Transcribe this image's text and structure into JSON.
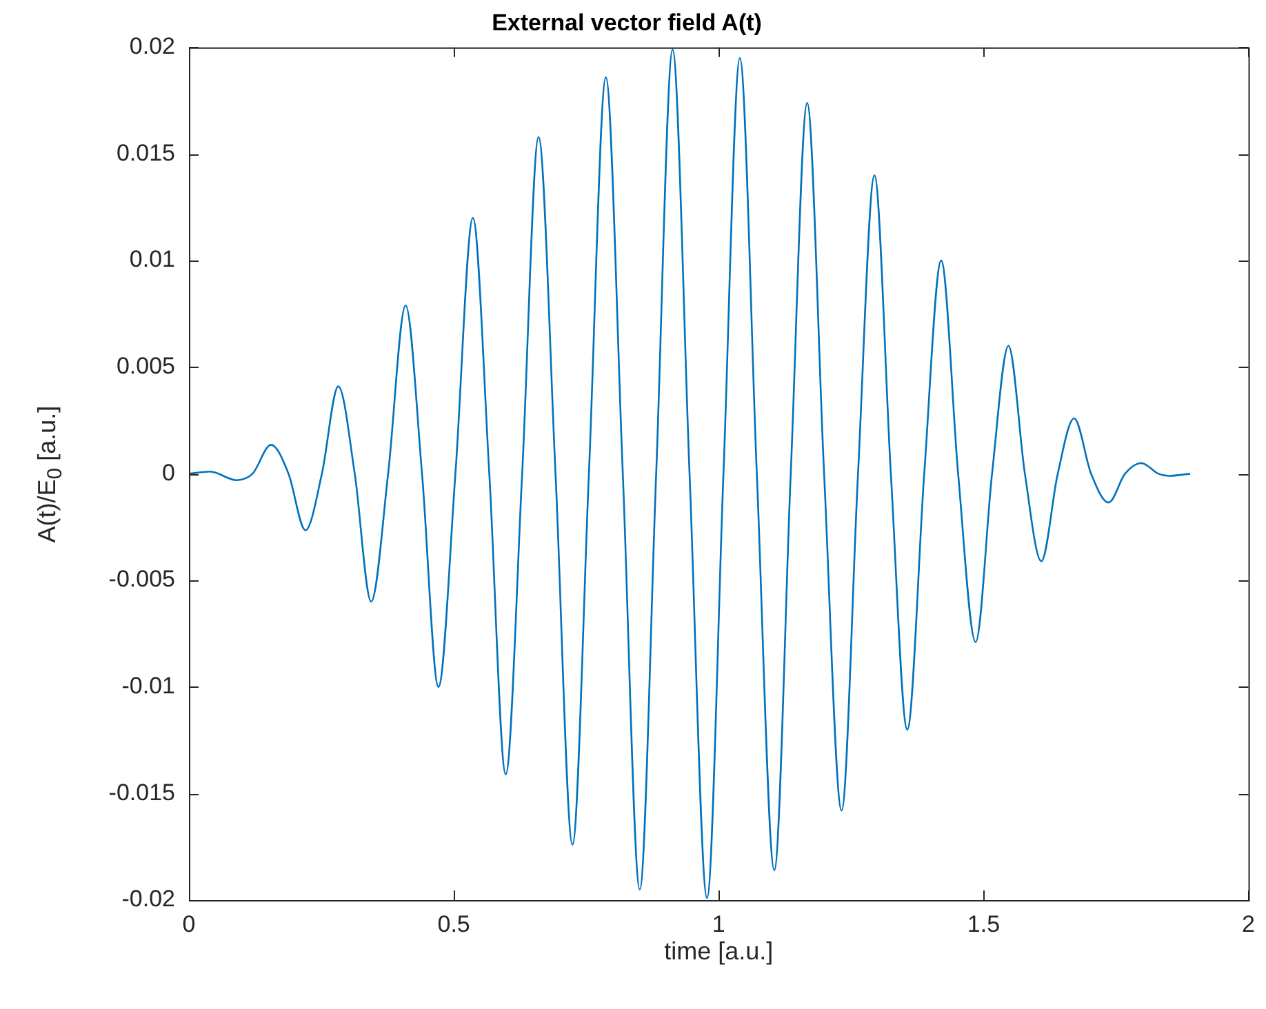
{
  "chart_data": {
    "type": "line",
    "title": "External vector field A(t)",
    "xlabel": "time [a.u.]",
    "ylabel": "A(t)/E$_{0}$ [a.u.]",
    "xlim": [
      0,
      2
    ],
    "xticks": [
      0,
      0.5,
      1,
      1.5,
      2
    ],
    "ylim": [
      -0.02,
      0.02
    ],
    "yticks": [
      -0.02,
      -0.015,
      -0.01,
      -0.005,
      0,
      0.005,
      0.01,
      0.015,
      0.02
    ],
    "grid": false,
    "legend": false,
    "marker": "none",
    "line_style": "solid",
    "series": [
      {
        "color": "#0072bd",
        "x": [
          0,
          0.04,
          0.09,
          0.12,
          0.155,
          0.188,
          0.22,
          0.251,
          0.282,
          0.313,
          0.344,
          0.376,
          0.409,
          0.44,
          0.471,
          0.503,
          0.536,
          0.567,
          0.598,
          0.629,
          0.66,
          0.692,
          0.724,
          0.755,
          0.787,
          0.819,
          0.851,
          0.882,
          0.913,
          0.945,
          0.978,
          1.009,
          1.04,
          1.072,
          1.105,
          1.136,
          1.167,
          1.199,
          1.232,
          1.263,
          1.294,
          1.325,
          1.356,
          1.388,
          1.42,
          1.452,
          1.485,
          1.516,
          1.547,
          1.578,
          1.609,
          1.64,
          1.671,
          1.703,
          1.736,
          1.767,
          1.798,
          1.83,
          1.85,
          1.89
        ],
        "values": [
          0,
          0.0001,
          -0.0003,
          0,
          0.00136,
          0,
          -0.00265,
          0,
          0.0041,
          0,
          -0.006,
          0,
          0.0079,
          0,
          -0.01,
          0,
          0.012,
          0,
          -0.0141,
          0,
          0.0158,
          0,
          -0.0174,
          0,
          0.0186,
          0,
          -0.0195,
          0,
          0.0199,
          0,
          -0.0199,
          0,
          0.0195,
          0,
          -0.0186,
          0,
          0.0174,
          0,
          -0.0158,
          0,
          0.014,
          0,
          -0.012,
          0,
          0.01,
          0,
          -0.0079,
          0,
          0.006,
          0,
          -0.0041,
          0,
          0.0026,
          0,
          -0.00135,
          0,
          0.0005,
          0,
          -0.0001,
          0
        ]
      }
    ]
  }
}
